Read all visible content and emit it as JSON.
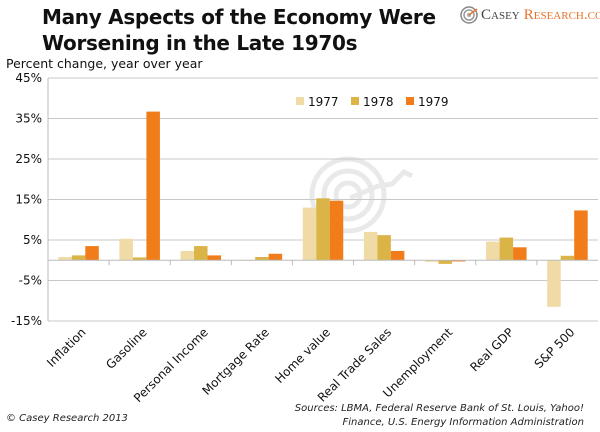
{
  "header": {
    "title_line1": "Many Aspects of the Economy Were",
    "title_line2": "Worsening in the Late 1970s",
    "brand_part1": "Casey",
    "brand_part2": "Research.com",
    "brand_icon": "casey-research-logo-icon"
  },
  "footer": {
    "copyright": "© Casey Research 2013",
    "sources_line1": "Sources: LBMA, Federal Reserve Bank of St. Louis, Yahoo!",
    "sources_line2": "Finance, U.S. Energy Information Administration"
  },
  "chart_data": {
    "type": "bar",
    "title": "Many Aspects of the Economy Were Worsening in the Late 1970s",
    "ylabel": "Percent change, year over year",
    "xlabel": "",
    "ylim": [
      -15,
      45
    ],
    "yticks": [
      45,
      35,
      25,
      15,
      5,
      -5,
      -15
    ],
    "ytick_labels": [
      "45%",
      "35%",
      "25%",
      "15%",
      "5%",
      "-5%",
      "-15%"
    ],
    "grid": true,
    "legend_position": "top-right",
    "categories": [
      "Inflation",
      "Gasoline",
      "Personal Income",
      "Mortgage Rate",
      "Home value",
      "Real Trade Sales",
      "Unemployment",
      "Real GDP",
      "S&P 500"
    ],
    "series": [
      {
        "name": "1977",
        "color": "#f0dba6",
        "values": [
          0.8,
          5.3,
          2.3,
          0.0,
          13.0,
          7.0,
          -0.4,
          4.6,
          -11.5
        ]
      },
      {
        "name": "1978",
        "color": "#dbb447",
        "values": [
          1.2,
          0.7,
          3.5,
          0.8,
          15.3,
          6.2,
          -0.9,
          5.6,
          1.1
        ]
      },
      {
        "name": "1979",
        "color": "#f07d1a",
        "values": [
          3.5,
          36.7,
          1.2,
          1.6,
          14.7,
          2.3,
          -0.3,
          3.2,
          12.3
        ]
      }
    ]
  }
}
